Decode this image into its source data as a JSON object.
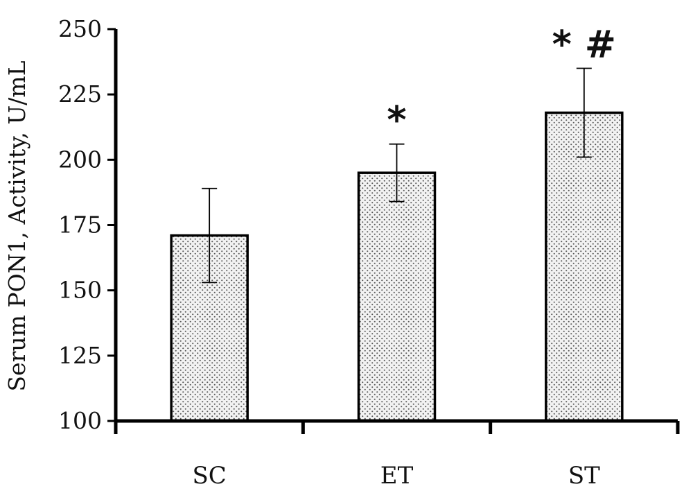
{
  "chart_data": {
    "type": "bar",
    "categories": [
      "SC",
      "ET",
      "ST"
    ],
    "values": [
      171,
      195,
      218
    ],
    "error": [
      18,
      11,
      17
    ],
    "annotations": [
      "",
      "*",
      "* #"
    ],
    "ylabel": "Serum PON1, Activity, U/mL",
    "xlabel": "",
    "ylim": [
      100,
      250
    ],
    "yticks": [
      100,
      125,
      150,
      175,
      200,
      225,
      250
    ],
    "grid": false,
    "bar_pattern": "dotted",
    "bar_fill": "#f2f2f2",
    "bar_dot_color": "#555555",
    "stroke_color": "#000000"
  }
}
